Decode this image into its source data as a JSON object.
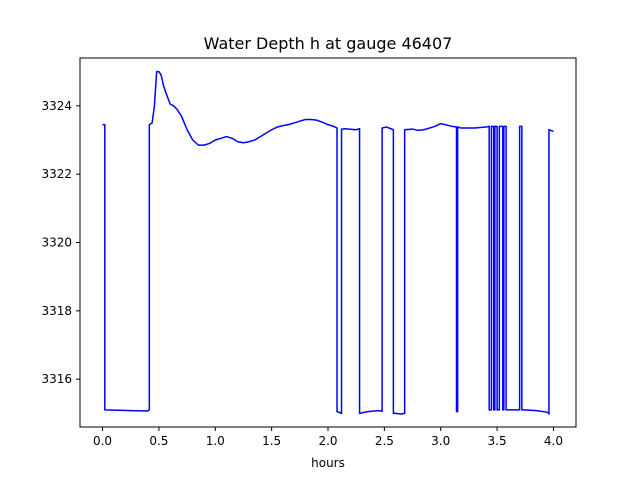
{
  "chart_data": {
    "type": "line",
    "title": "Water Depth h at gauge 46407",
    "xlabel": "hours",
    "ylabel": "",
    "xlim": [
      -0.2,
      4.2
    ],
    "ylim": [
      3314.6,
      3325.4
    ],
    "xticks": [
      0.0,
      0.5,
      1.0,
      1.5,
      2.0,
      2.5,
      3.0,
      3.5,
      4.0
    ],
    "xtick_labels": [
      "0.0",
      "0.5",
      "1.0",
      "1.5",
      "2.0",
      "2.5",
      "3.0",
      "3.5",
      "4.0"
    ],
    "yticks": [
      3316,
      3318,
      3320,
      3322,
      3324
    ],
    "ytick_labels": [
      "3316",
      "3318",
      "3320",
      "3322",
      "3324"
    ],
    "grid": false,
    "series": [
      {
        "color": "#0000ff",
        "x": [
          0.0,
          0.02,
          0.02,
          0.25,
          0.4,
          0.415,
          0.415,
          0.44,
          0.46,
          0.48,
          0.5,
          0.52,
          0.54,
          0.56,
          0.6,
          0.63,
          0.66,
          0.7,
          0.75,
          0.8,
          0.85,
          0.9,
          0.95,
          1.0,
          1.05,
          1.1,
          1.15,
          1.2,
          1.25,
          1.3,
          1.35,
          1.4,
          1.45,
          1.5,
          1.55,
          1.6,
          1.65,
          1.7,
          1.75,
          1.8,
          1.85,
          1.9,
          1.95,
          2.0,
          2.05,
          2.08,
          2.08,
          2.12,
          2.12,
          2.15,
          2.25,
          2.28,
          2.28,
          2.35,
          2.45,
          2.48,
          2.48,
          2.52,
          2.58,
          2.58,
          2.6,
          2.6,
          2.65,
          2.68,
          2.68,
          2.75,
          2.8,
          2.85,
          2.9,
          2.95,
          3.0,
          3.1,
          3.14,
          3.14,
          3.15,
          3.15,
          3.18,
          3.3,
          3.4,
          3.43,
          3.43,
          3.45,
          3.45,
          3.47,
          3.47,
          3.48,
          3.48,
          3.5,
          3.5,
          3.52,
          3.52,
          3.55,
          3.55,
          3.56,
          3.56,
          3.58,
          3.58,
          3.6,
          3.6,
          3.7,
          3.7,
          3.72,
          3.72,
          3.74,
          3.74,
          3.85,
          3.95,
          3.96,
          3.96,
          4.0
        ],
        "y": [
          3323.45,
          3323.45,
          3315.1,
          3315.08,
          3315.07,
          3315.1,
          3323.45,
          3323.5,
          3324.0,
          3325.0,
          3325.0,
          3324.9,
          3324.6,
          3324.4,
          3324.05,
          3324.0,
          3323.9,
          3323.7,
          3323.3,
          3323.0,
          3322.85,
          3322.85,
          3322.9,
          3323.0,
          3323.05,
          3323.1,
          3323.05,
          3322.95,
          3322.92,
          3322.95,
          3323.0,
          3323.1,
          3323.2,
          3323.3,
          3323.38,
          3323.42,
          3323.45,
          3323.5,
          3323.55,
          3323.6,
          3323.6,
          3323.58,
          3323.52,
          3323.45,
          3323.4,
          3323.35,
          3315.05,
          3315.0,
          3323.32,
          3323.33,
          3323.3,
          3323.33,
          3315.0,
          3315.05,
          3315.08,
          3315.06,
          3323.35,
          3323.38,
          3323.3,
          3315.0,
          3315.0,
          3315.0,
          3314.98,
          3315.0,
          3323.3,
          3323.32,
          3323.28,
          3323.3,
          3323.35,
          3323.4,
          3323.48,
          3323.4,
          3323.38,
          3315.05,
          3315.05,
          3323.38,
          3323.35,
          3323.35,
          3323.38,
          3323.4,
          3315.1,
          3315.1,
          3323.4,
          3323.4,
          3315.1,
          3315.1,
          3323.4,
          3323.4,
          3315.1,
          3315.1,
          3323.4,
          3323.4,
          3315.1,
          3315.1,
          3323.4,
          3323.4,
          3315.1,
          3315.1,
          3315.1,
          3315.1,
          3323.4,
          3323.4,
          3315.1,
          3315.1,
          3315.1,
          3315.08,
          3315.03,
          3314.98,
          3323.3,
          3323.25
        ]
      }
    ]
  }
}
